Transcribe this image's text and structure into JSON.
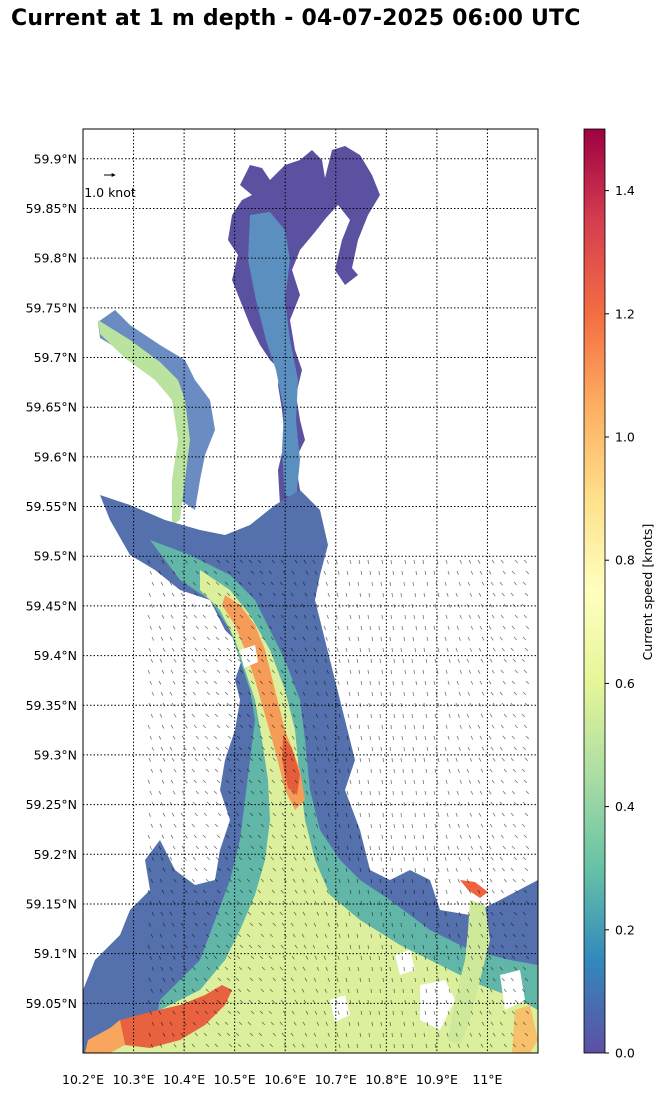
{
  "title": "Current at 1 m depth - 04-07-2025 06:00 UTC",
  "map": {
    "lat_ticks": [
      "59.9°N",
      "59.85°N",
      "59.8°N",
      "59.75°N",
      "59.7°N",
      "59.65°N",
      "59.6°N",
      "59.55°N",
      "59.5°N",
      "59.45°N",
      "59.4°N",
      "59.35°N",
      "59.3°N",
      "59.25°N",
      "59.2°N",
      "59.15°N",
      "59.1°N",
      "59.05°N"
    ],
    "lat_values": [
      59.9,
      59.85,
      59.8,
      59.75,
      59.7,
      59.65,
      59.6,
      59.55,
      59.5,
      59.45,
      59.4,
      59.35,
      59.3,
      59.25,
      59.2,
      59.15,
      59.1,
      59.05
    ],
    "lon_ticks": [
      "10.2°E",
      "10.3°E",
      "10.4°E",
      "10.5°E",
      "10.6°E",
      "10.7°E",
      "10.8°E",
      "10.9°E",
      "11°E"
    ],
    "lon_values": [
      10.2,
      10.3,
      10.4,
      10.5,
      10.6,
      10.7,
      10.8,
      10.9,
      11.0
    ],
    "lat_range": [
      59.0,
      59.93
    ],
    "lon_range": [
      10.2,
      11.1
    ],
    "grid": "dotted",
    "reference_arrow_label": "1.0 knot",
    "land_color": "#ffffff"
  },
  "colorbar": {
    "label": "Current speed [knots]",
    "ticks": [
      "0.0",
      "0.2",
      "0.4",
      "0.6",
      "0.8",
      "1.0",
      "1.2",
      "1.4"
    ],
    "tick_values": [
      0.0,
      0.2,
      0.4,
      0.6,
      0.8,
      1.0,
      1.2,
      1.4
    ],
    "range": [
      0.0,
      1.5
    ],
    "colormap": "Spectral_r",
    "colors": [
      "#5e4fa2",
      "#3288bd",
      "#66c2a5",
      "#abdda4",
      "#e6f598",
      "#ffffbf",
      "#fee08b",
      "#fdae61",
      "#f46d43",
      "#d53e4f",
      "#9e0142"
    ]
  }
}
